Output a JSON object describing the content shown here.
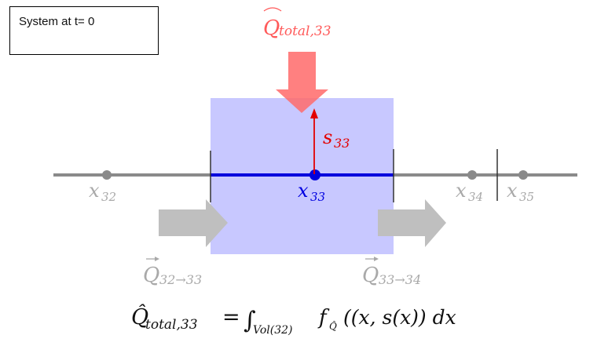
{
  "title_box": {
    "text": "System at t= 0"
  },
  "heat_input": {
    "label_symbol": "Q",
    "label_subscript": "total,33",
    "color": "#ff6b6b"
  },
  "state_arrow": {
    "label_symbol": "s",
    "label_subscript": "33",
    "color": "#e30000"
  },
  "control_volume": {
    "fill": "#c8c8ff"
  },
  "nodes": [
    {
      "symbol": "x",
      "subscript": "32",
      "label_color": "#a9a9a9"
    },
    {
      "symbol": "x",
      "subscript": "33",
      "label_color": "#0000e0"
    },
    {
      "symbol": "x",
      "subscript": "34",
      "label_color": "#a9a9a9"
    },
    {
      "symbol": "x",
      "subscript": "35",
      "label_color": "#a9a9a9"
    }
  ],
  "fluxes": [
    {
      "symbol": "Q",
      "subscript": "32→33"
    },
    {
      "symbol": "Q",
      "subscript": "33→34"
    }
  ],
  "equation": {
    "lhs_symbol": "Q̂",
    "lhs_subscript": "total,33",
    "equals": "=",
    "integral": "∫",
    "integral_subscript": "Vol(32)",
    "function": "f",
    "function_subscript": "Q̂",
    "body": "((x, s(x)) dx"
  },
  "colors": {
    "axis": "#8a8a8a",
    "node_grey": "#8a8a8a",
    "node_blue": "#0000dd",
    "flux_arrow": "#bfbfbf",
    "label_grey": "#a9a9a9"
  }
}
